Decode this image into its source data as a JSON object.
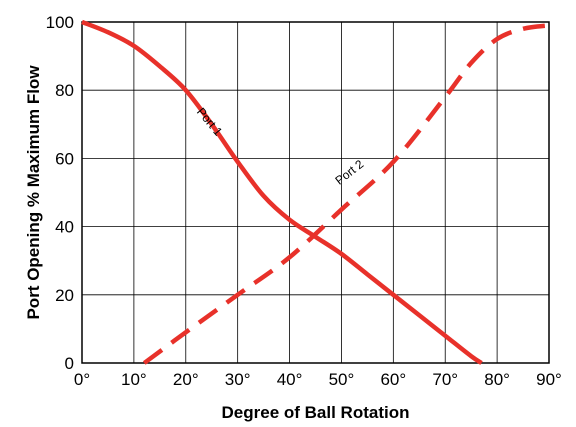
{
  "chart_data": {
    "type": "line",
    "xlabel": "Degree of Ball Rotation",
    "ylabel": "Port Opening % Maximum Flow",
    "xlim": [
      0,
      90
    ],
    "ylim": [
      0,
      100
    ],
    "x_ticks": [
      0,
      10,
      20,
      30,
      40,
      50,
      60,
      70,
      80,
      90
    ],
    "x_tick_labels": [
      "0°",
      "10°",
      "20°",
      "30°",
      "40°",
      "50°",
      "60°",
      "70°",
      "80°",
      "90°"
    ],
    "y_ticks": [
      0,
      20,
      40,
      60,
      80,
      100
    ],
    "y_tick_labels": [
      "0",
      "20",
      "40",
      "60",
      "80",
      "100"
    ],
    "grid": true,
    "legend": "none",
    "series": [
      {
        "name": "Port 1",
        "style": "solid",
        "color": "#e8312a",
        "x": [
          0,
          5,
          10,
          15,
          20,
          25,
          30,
          35,
          40,
          45,
          50,
          55,
          60,
          65,
          70,
          75,
          77
        ],
        "y": [
          100,
          97,
          93,
          87,
          80,
          70,
          59,
          49,
          42,
          37,
          32,
          26,
          20,
          14,
          8,
          2,
          0
        ]
      },
      {
        "name": "Port 2",
        "style": "dashed",
        "color": "#e8312a",
        "x": [
          12,
          20,
          30,
          40,
          50,
          60,
          70,
          75,
          80,
          85,
          90
        ],
        "y": [
          0,
          9,
          20,
          31,
          45,
          59,
          78,
          88,
          95,
          98,
          99
        ]
      }
    ],
    "annotations": [
      {
        "text": "Port 1",
        "x": 24,
        "y": 70,
        "angle": 50
      },
      {
        "text": "Port 2",
        "x": 52,
        "y": 55,
        "angle": -38
      }
    ]
  }
}
